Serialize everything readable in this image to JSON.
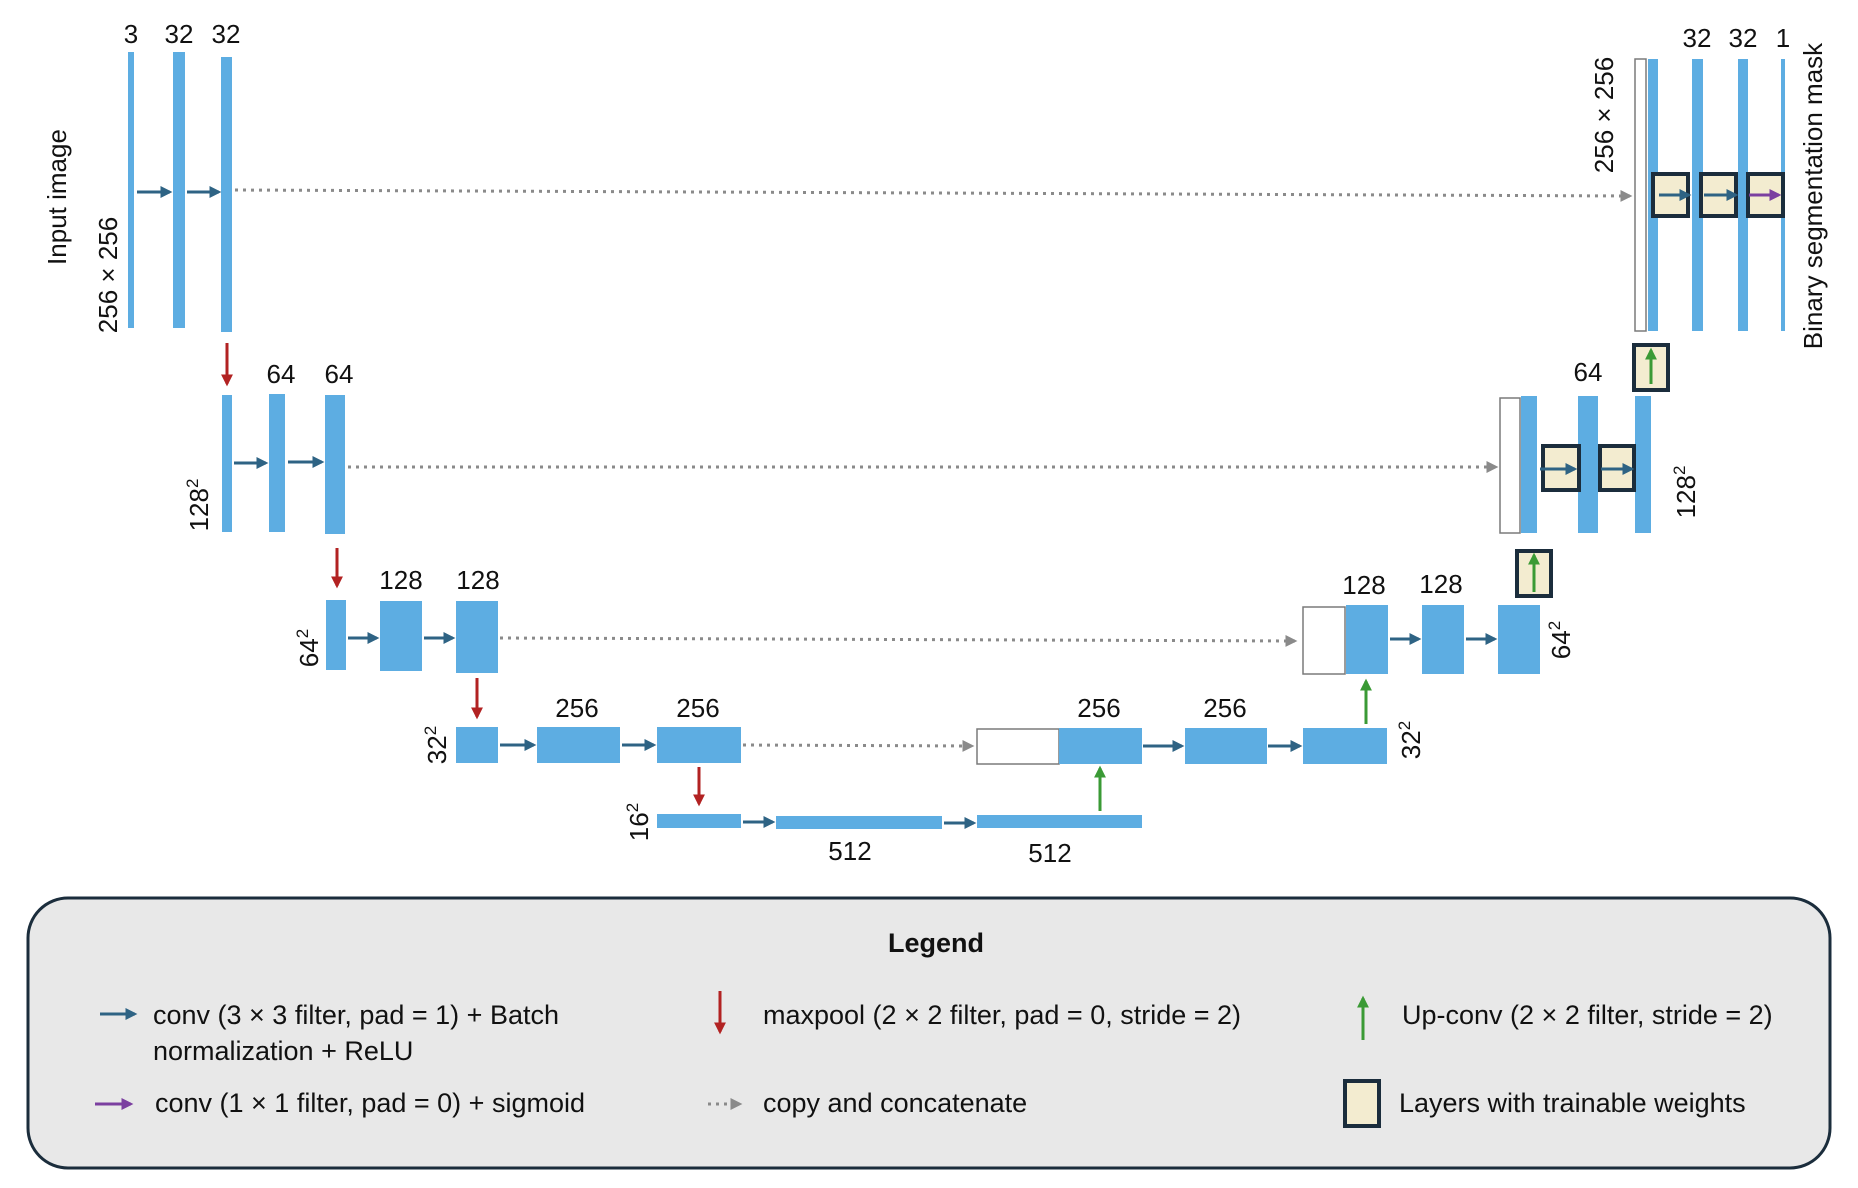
{
  "colors": {
    "block": "#5dade2",
    "conv_arrow": "#2e6384",
    "maxpool_arrow": "#b22222",
    "upconv_arrow": "#3a9a35",
    "sigmoid_arrow": "#7b3fa0",
    "copy_arrow": "#8a8a8a",
    "trainable_fill": "#f3ecd0",
    "trainable_border": "#1b2d3c",
    "legend_bg": "#e8e8e8"
  },
  "labels": {
    "input_image": "Input image",
    "output_mask": "Binary segmentation mask",
    "l1_in_size": "256 × 256",
    "l1_out_size": "256 × 256",
    "l2_in_size": "128",
    "l2_out_size": "128",
    "l3_in_size": "64",
    "l3_out_size": "64",
    "l4_in_size": "32",
    "l4_out_size": "32",
    "l5_size": "16",
    "squared": "2",
    "c_3": "3",
    "c_32a": "32",
    "c_32b": "32",
    "c_64a": "64",
    "c_64b": "64",
    "c_128a": "128",
    "c_128b": "128",
    "c_256a": "256",
    "c_256b": "256",
    "c_512a": "512",
    "c_512b": "512",
    "c_256c": "256",
    "c_256d": "256",
    "c_128c": "128",
    "c_128d": "128",
    "c_64c": "64",
    "c_32c": "32",
    "c_32d": "32",
    "c_1": "1"
  },
  "legend": {
    "title": "Legend",
    "conv_line1": "conv (3 × 3 filter, pad = 1) + Batch",
    "conv_line2": "normalization + ReLU",
    "maxpool": "maxpool (2 × 2 filter, pad = 0, stride = 2)",
    "upconv": "Up-conv (2 × 2 filter, stride = 2)",
    "sigmoid": "conv (1 × 1 filter, pad = 0) + sigmoid",
    "copy": "copy and concatenate",
    "trainable": "Layers with trainable weights"
  }
}
